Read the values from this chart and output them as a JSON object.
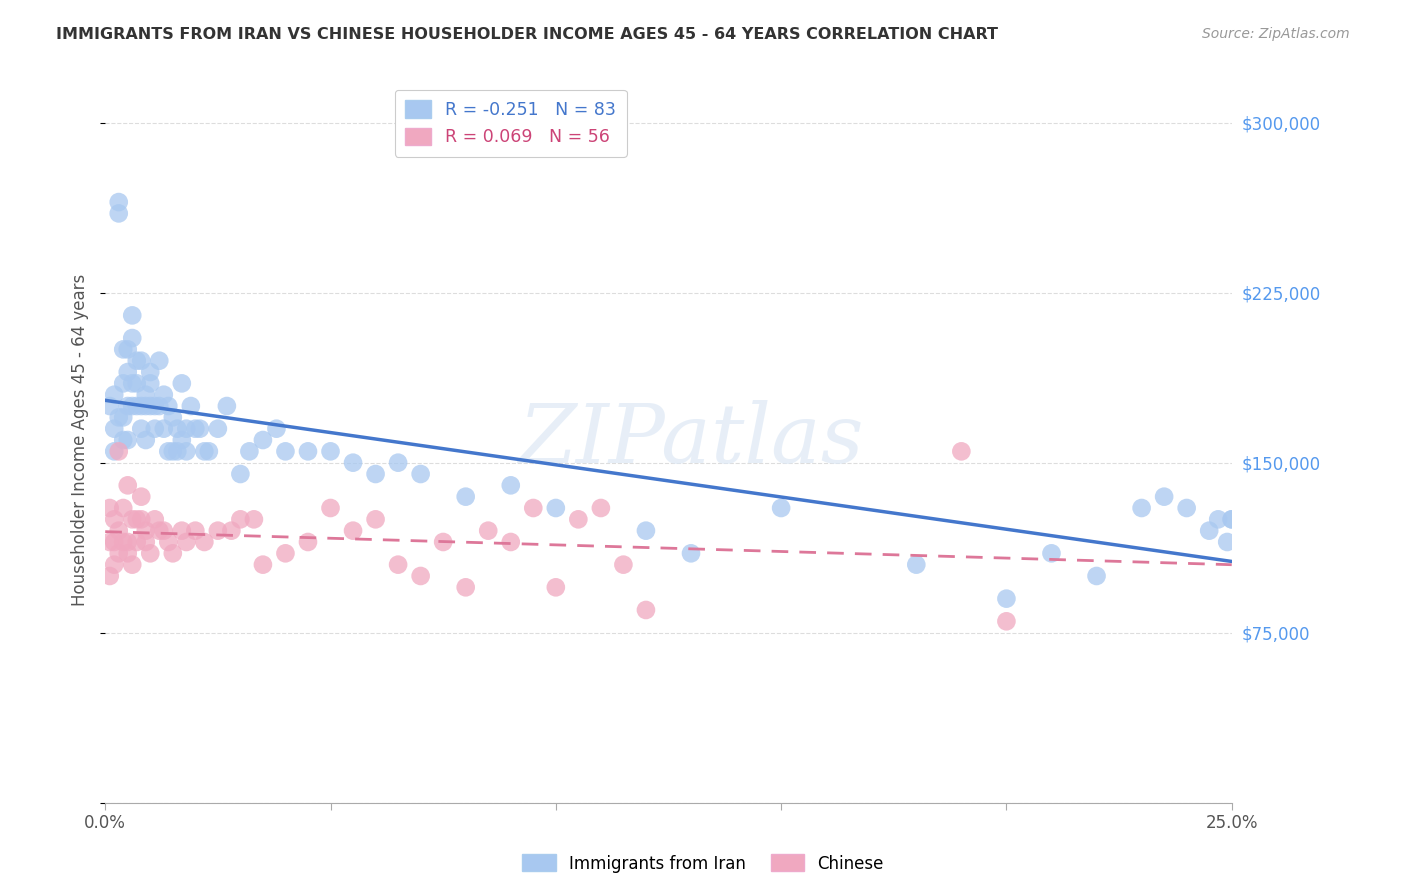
{
  "title": "IMMIGRANTS FROM IRAN VS CHINESE HOUSEHOLDER INCOME AGES 45 - 64 YEARS CORRELATION CHART",
  "source": "Source: ZipAtlas.com",
  "ylabel": "Householder Income Ages 45 - 64 years",
  "x_min": 0.0,
  "x_max": 0.25,
  "y_min": 0,
  "y_max": 320000,
  "x_ticks": [
    0.0,
    0.05,
    0.1,
    0.15,
    0.2,
    0.25
  ],
  "x_tick_labels": [
    "0.0%",
    "",
    "",
    "",
    "",
    "25.0%"
  ],
  "y_ticks": [
    0,
    75000,
    150000,
    225000,
    300000
  ],
  "y_tick_labels": [
    "",
    "$75,000",
    "$150,000",
    "$225,000",
    "$300,000"
  ],
  "iran_color": "#a8c8f0",
  "chinese_color": "#f0a8c0",
  "iran_line_color": "#4477cc",
  "chinese_line_color": "#dd7799",
  "iran_R": -0.251,
  "iran_N": 83,
  "chinese_R": 0.069,
  "chinese_N": 56,
  "iran_x": [
    0.001,
    0.002,
    0.002,
    0.002,
    0.003,
    0.003,
    0.003,
    0.004,
    0.004,
    0.004,
    0.004,
    0.005,
    0.005,
    0.005,
    0.005,
    0.006,
    0.006,
    0.006,
    0.006,
    0.007,
    0.007,
    0.007,
    0.008,
    0.008,
    0.008,
    0.009,
    0.009,
    0.009,
    0.01,
    0.01,
    0.01,
    0.011,
    0.011,
    0.012,
    0.012,
    0.013,
    0.013,
    0.014,
    0.014,
    0.015,
    0.015,
    0.016,
    0.016,
    0.017,
    0.017,
    0.018,
    0.018,
    0.019,
    0.02,
    0.021,
    0.022,
    0.023,
    0.025,
    0.027,
    0.03,
    0.032,
    0.035,
    0.038,
    0.04,
    0.045,
    0.05,
    0.055,
    0.06,
    0.065,
    0.07,
    0.08,
    0.09,
    0.1,
    0.12,
    0.13,
    0.15,
    0.18,
    0.2,
    0.21,
    0.22,
    0.23,
    0.235,
    0.24,
    0.245,
    0.247,
    0.249,
    0.25,
    0.25
  ],
  "iran_y": [
    175000,
    165000,
    155000,
    180000,
    260000,
    265000,
    170000,
    170000,
    160000,
    185000,
    200000,
    175000,
    190000,
    160000,
    200000,
    205000,
    215000,
    185000,
    175000,
    175000,
    185000,
    195000,
    165000,
    175000,
    195000,
    175000,
    160000,
    180000,
    185000,
    190000,
    175000,
    175000,
    165000,
    175000,
    195000,
    180000,
    165000,
    175000,
    155000,
    170000,
    155000,
    165000,
    155000,
    160000,
    185000,
    155000,
    165000,
    175000,
    165000,
    165000,
    155000,
    155000,
    165000,
    175000,
    145000,
    155000,
    160000,
    165000,
    155000,
    155000,
    155000,
    150000,
    145000,
    150000,
    145000,
    135000,
    140000,
    130000,
    120000,
    110000,
    130000,
    105000,
    90000,
    110000,
    100000,
    130000,
    135000,
    130000,
    120000,
    125000,
    115000,
    125000,
    125000
  ],
  "chinese_x": [
    0.001,
    0.001,
    0.001,
    0.002,
    0.002,
    0.002,
    0.003,
    0.003,
    0.003,
    0.004,
    0.004,
    0.005,
    0.005,
    0.005,
    0.006,
    0.006,
    0.007,
    0.007,
    0.008,
    0.008,
    0.009,
    0.009,
    0.01,
    0.011,
    0.012,
    0.013,
    0.014,
    0.015,
    0.017,
    0.018,
    0.02,
    0.022,
    0.025,
    0.028,
    0.03,
    0.033,
    0.035,
    0.04,
    0.045,
    0.05,
    0.055,
    0.06,
    0.065,
    0.07,
    0.075,
    0.08,
    0.085,
    0.09,
    0.095,
    0.1,
    0.105,
    0.11,
    0.115,
    0.12,
    0.19,
    0.2
  ],
  "chinese_y": [
    115000,
    100000,
    130000,
    115000,
    125000,
    105000,
    155000,
    120000,
    110000,
    115000,
    130000,
    115000,
    140000,
    110000,
    125000,
    105000,
    115000,
    125000,
    125000,
    135000,
    120000,
    115000,
    110000,
    125000,
    120000,
    120000,
    115000,
    110000,
    120000,
    115000,
    120000,
    115000,
    120000,
    120000,
    125000,
    125000,
    105000,
    110000,
    115000,
    130000,
    120000,
    125000,
    105000,
    100000,
    115000,
    95000,
    120000,
    115000,
    130000,
    95000,
    125000,
    130000,
    105000,
    85000,
    155000,
    80000
  ],
  "watermark": "ZIPatlas",
  "background_color": "#ffffff",
  "grid_color": "#dddddd"
}
